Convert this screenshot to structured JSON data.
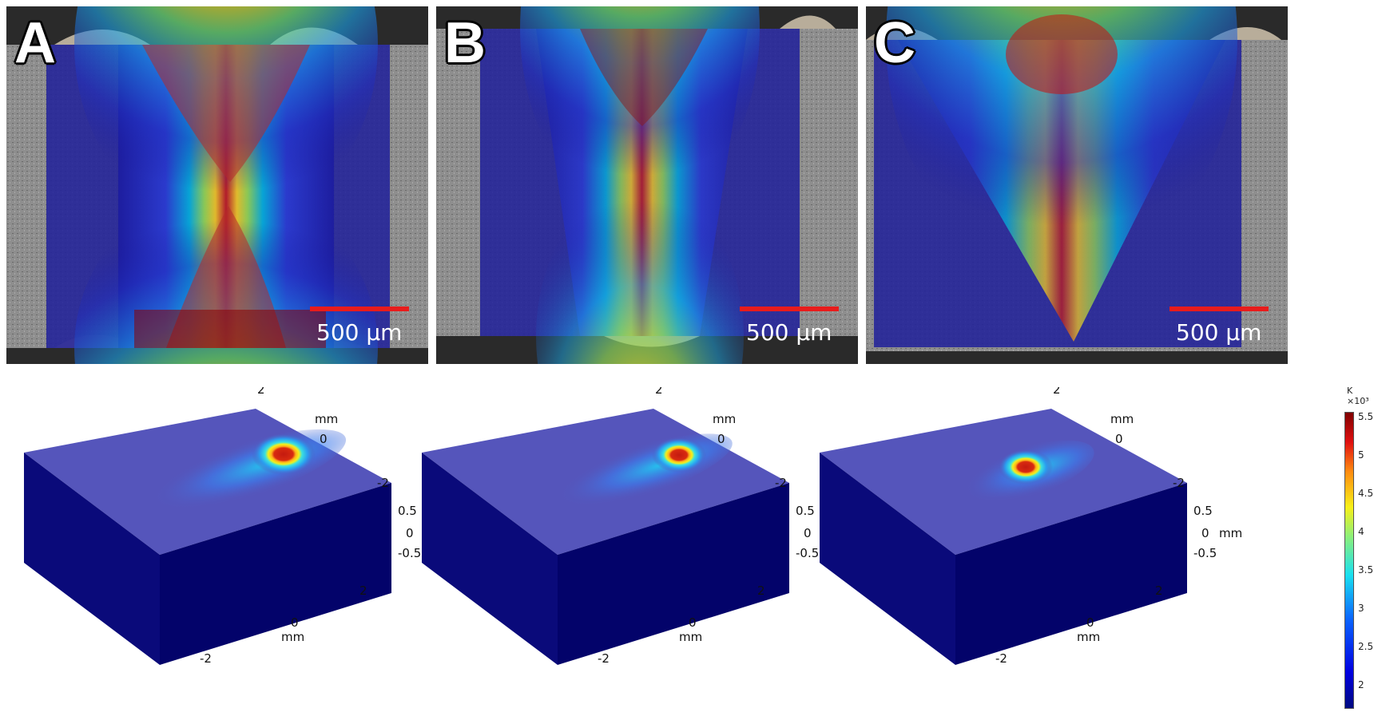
{
  "panels": [
    {
      "letter": "A",
      "scale_label": "500 µm"
    },
    {
      "letter": "B",
      "scale_label": "500 µm"
    },
    {
      "letter": "C",
      "scale_label": "500 µm"
    }
  ],
  "simulation": {
    "axis_unit": "mm",
    "y_ticks": [
      "2",
      "0",
      "-2"
    ],
    "z_ticks": [
      "0.5",
      "0",
      "-0.5"
    ],
    "x_ticks": [
      "2",
      "0",
      "-2"
    ]
  },
  "colorbar": {
    "unit": "K",
    "multiplier": "×10³",
    "ticks": [
      "5.5",
      "5",
      "4.5",
      "4",
      "3.5",
      "3",
      "2.5",
      "2"
    ],
    "range": [
      1.7,
      5.55
    ]
  },
  "colors": {
    "hot": "#a00000",
    "cold": "#1a1a9a",
    "scale_bar": "#e81c1c"
  }
}
